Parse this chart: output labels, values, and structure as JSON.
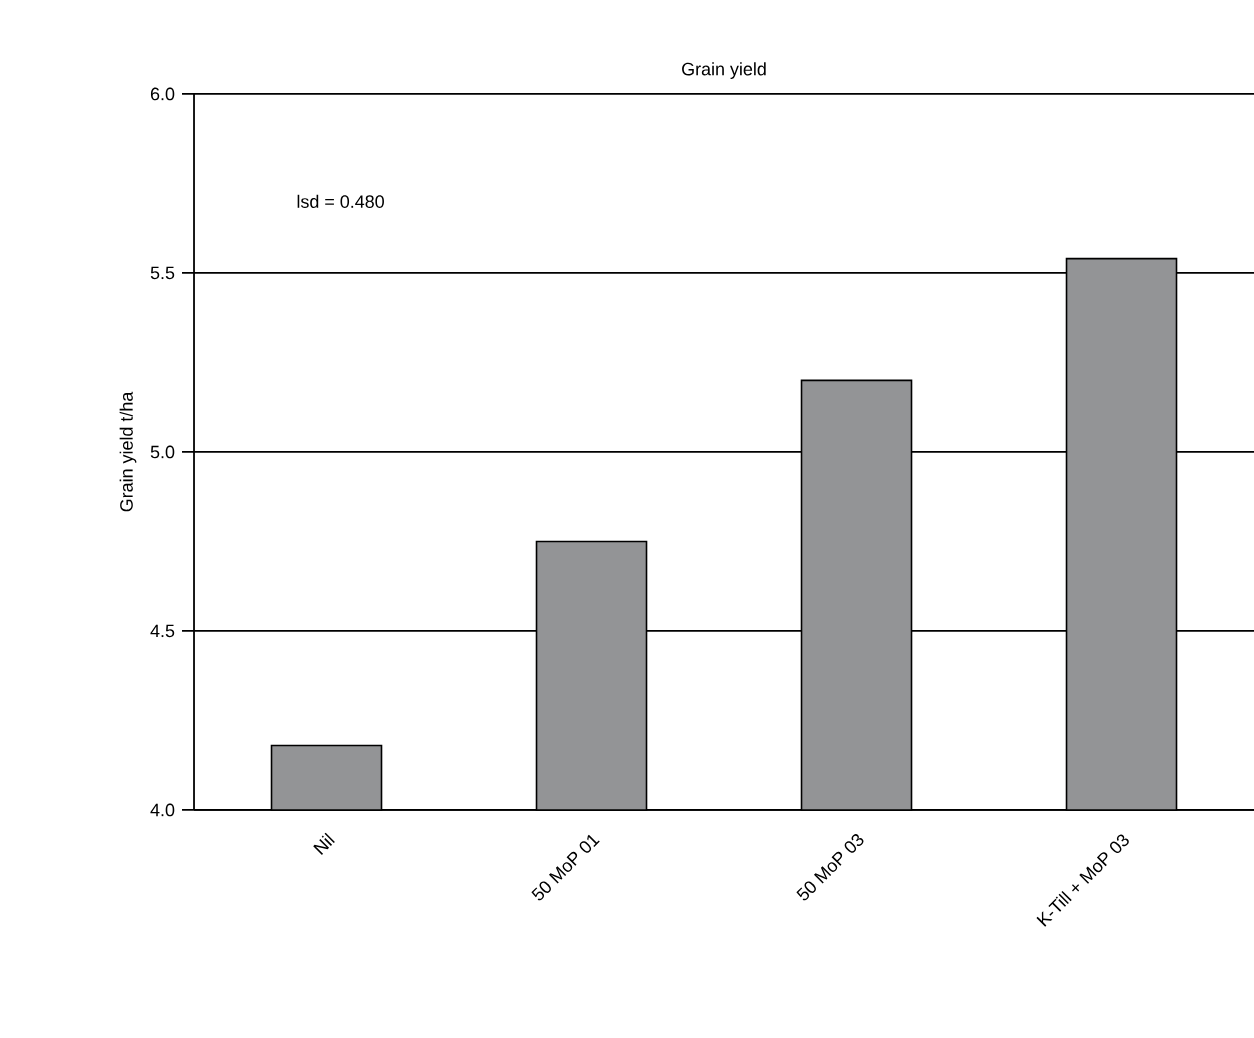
{
  "chart_data": {
    "type": "bar",
    "title": "Grain yield",
    "ylabel": "Grain yield t/ha",
    "categories": [
      "Nil",
      "50 MoP 01",
      "50 MoP 03",
      "K-Till + MoP 03"
    ],
    "values": [
      4.18,
      4.75,
      5.2,
      5.54
    ],
    "color": "#939496",
    "ylim": [
      4.0,
      6.0
    ],
    "yticks": [
      {
        "value": 4.0,
        "label": "4.0"
      },
      {
        "value": 4.5,
        "label": "4.5"
      },
      {
        "value": 5.0,
        "label": "5.0"
      },
      {
        "value": 5.5,
        "label": "5.5"
      },
      {
        "value": 6.0,
        "label": "6.0"
      }
    ],
    "grid": "y",
    "annotations": [
      "lsd = 0.480"
    ]
  }
}
